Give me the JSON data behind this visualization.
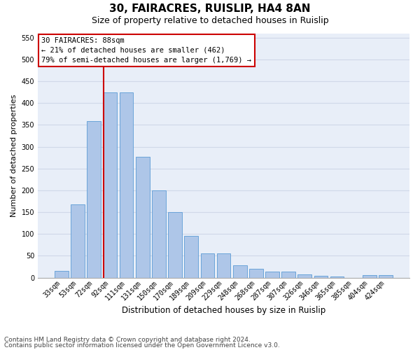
{
  "title1": "30, FAIRACRES, RUISLIP, HA4 8AN",
  "title2": "Size of property relative to detached houses in Ruislip",
  "xlabel": "Distribution of detached houses by size in Ruislip",
  "ylabel": "Number of detached properties",
  "categories": [
    "33sqm",
    "53sqm",
    "72sqm",
    "92sqm",
    "111sqm",
    "131sqm",
    "150sqm",
    "170sqm",
    "189sqm",
    "209sqm",
    "229sqm",
    "248sqm",
    "268sqm",
    "287sqm",
    "307sqm",
    "326sqm",
    "346sqm",
    "365sqm",
    "385sqm",
    "404sqm",
    "424sqm"
  ],
  "values": [
    16,
    168,
    358,
    425,
    425,
    277,
    200,
    150,
    96,
    55,
    55,
    29,
    21,
    14,
    14,
    7,
    5,
    3,
    0,
    6,
    6
  ],
  "bar_color": "#aec6e8",
  "bar_edge_color": "#5b9bd5",
  "vline_color": "#cc0000",
  "vline_bin_index": 3,
  "annotation_text": "30 FAIRACRES: 88sqm\n← 21% of detached houses are smaller (462)\n79% of semi-detached houses are larger (1,769) →",
  "annotation_box_color": "#ffffff",
  "annotation_box_edge": "#cc0000",
  "ylim": [
    0,
    560
  ],
  "yticks": [
    0,
    50,
    100,
    150,
    200,
    250,
    300,
    350,
    400,
    450,
    500,
    550
  ],
  "grid_color": "#d0d8e8",
  "bg_color": "#e8eef8",
  "footer1": "Contains HM Land Registry data © Crown copyright and database right 2024.",
  "footer2": "Contains public sector information licensed under the Open Government Licence v3.0.",
  "title1_fontsize": 11,
  "title2_fontsize": 9,
  "xlabel_fontsize": 8.5,
  "ylabel_fontsize": 8,
  "tick_fontsize": 7,
  "ann_fontsize": 7.5,
  "footer_fontsize": 6.5
}
